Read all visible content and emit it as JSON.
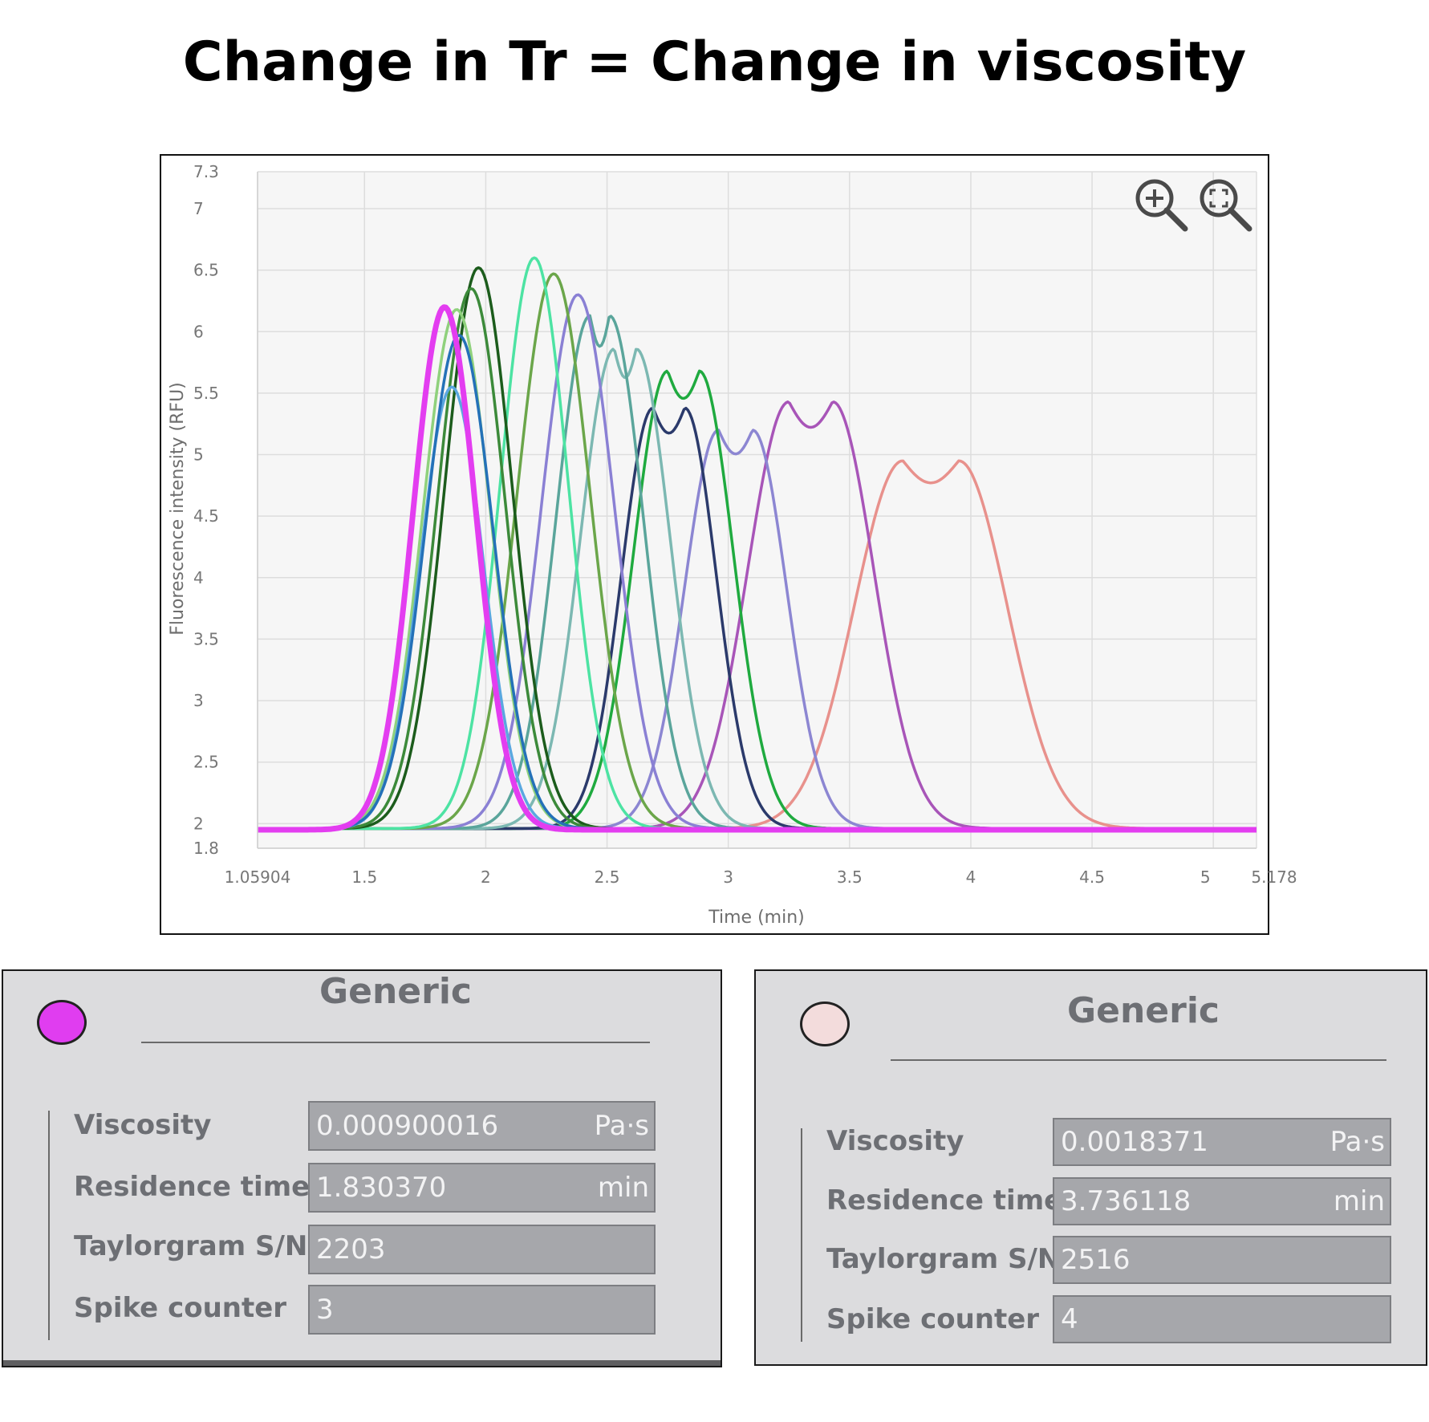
{
  "title": "Change in Tr = Change in viscosity",
  "chart_data": {
    "type": "line",
    "title": "",
    "xlabel": "Time (min)",
    "ylabel": "Fluorescence intensity (RFU)",
    "xlim": [
      1.05904,
      5.178
    ],
    "ylim": [
      1.8,
      7.3
    ],
    "x_ticks": [
      "1.05904",
      "1.5",
      "2",
      "2.5",
      "3",
      "3.5",
      "4",
      "4.5",
      "5",
      "5.178"
    ],
    "y_ticks": [
      "1.8",
      "2",
      "2.5",
      "3",
      "3.5",
      "4",
      "4.5",
      "5",
      "5.5",
      "6",
      "6.5",
      "7",
      "7.3"
    ],
    "grid": true,
    "legend": "none",
    "series": [
      {
        "color": "#e8918c",
        "baseline": 1.96,
        "peaks": [
          {
            "t": 3.72,
            "h": 4.95,
            "w": 0.2
          },
          {
            "t": 3.95,
            "h": 4.95,
            "w": 0.2
          }
        ]
      },
      {
        "color": "#a855b8",
        "baseline": 1.96,
        "peaks": [
          {
            "t": 3.25,
            "h": 5.43,
            "w": 0.17
          },
          {
            "t": 3.43,
            "h": 5.43,
            "w": 0.17
          }
        ]
      },
      {
        "color": "#8c86d2",
        "baseline": 1.96,
        "peaks": [
          {
            "t": 2.96,
            "h": 5.2,
            "w": 0.14
          },
          {
            "t": 3.1,
            "h": 5.2,
            "w": 0.14
          }
        ]
      },
      {
        "color": "#1faa3f",
        "baseline": 1.96,
        "peaks": [
          {
            "t": 2.75,
            "h": 5.68,
            "w": 0.14
          },
          {
            "t": 2.88,
            "h": 5.68,
            "w": 0.14
          }
        ]
      },
      {
        "color": "#2b3a6b",
        "baseline": 1.96,
        "peaks": [
          {
            "t": 2.69,
            "h": 5.38,
            "w": 0.13
          },
          {
            "t": 2.82,
            "h": 5.38,
            "w": 0.13
          }
        ]
      },
      {
        "color": "#7cb8b2",
        "baseline": 1.96,
        "peaks": [
          {
            "t": 2.53,
            "h": 5.86,
            "w": 0.14
          },
          {
            "t": 2.62,
            "h": 5.86,
            "w": 0.14
          }
        ]
      },
      {
        "color": "#5aa59b",
        "baseline": 1.96,
        "peaks": [
          {
            "t": 2.43,
            "h": 6.13,
            "w": 0.14
          },
          {
            "t": 2.51,
            "h": 6.13,
            "w": 0.14
          }
        ]
      },
      {
        "color": "#8a80d4",
        "baseline": 1.96,
        "peaks": [
          {
            "t": 2.38,
            "h": 6.3,
            "w": 0.15
          }
        ]
      },
      {
        "color": "#6ba64a",
        "baseline": 1.96,
        "peaks": [
          {
            "t": 2.28,
            "h": 6.47,
            "w": 0.15
          }
        ]
      },
      {
        "color": "#4de3a3",
        "baseline": 1.96,
        "peaks": [
          {
            "t": 2.2,
            "h": 6.6,
            "w": 0.14
          }
        ]
      },
      {
        "color": "#1c5c1c",
        "baseline": 1.96,
        "peaks": [
          {
            "t": 1.97,
            "h": 6.52,
            "w": 0.14
          }
        ]
      },
      {
        "color": "#3c8a3a",
        "baseline": 1.96,
        "peaks": [
          {
            "t": 1.94,
            "h": 6.35,
            "w": 0.14
          }
        ]
      },
      {
        "color": "#8fd17c",
        "baseline": 1.96,
        "peaks": [
          {
            "t": 1.88,
            "h": 6.18,
            "w": 0.14
          }
        ]
      },
      {
        "color": "#5aa7e0",
        "baseline": 1.96,
        "peaks": [
          {
            "t": 1.86,
            "h": 5.55,
            "w": 0.13
          }
        ]
      },
      {
        "color": "#2471b8",
        "baseline": 1.96,
        "peaks": [
          {
            "t": 1.89,
            "h": 5.97,
            "w": 0.14
          }
        ]
      },
      {
        "color": "#e33df0",
        "baseline": 1.95,
        "peaks": [
          {
            "t": 1.83,
            "h": 6.2,
            "w": 0.13
          }
        ],
        "thick": true
      }
    ]
  },
  "toolbar": {
    "zoom_in_icon": "zoom-in-icon",
    "zoom_reset_icon": "zoom-fit-icon"
  },
  "panels": [
    {
      "heading": "Generic",
      "dot_color": "#e03df0",
      "fields": [
        {
          "label": "Viscosity",
          "value": "0.000900016",
          "unit": "Pa·s"
        },
        {
          "label": "Residence time",
          "value": "1.830370",
          "unit": "min"
        },
        {
          "label": "Taylorgram S/N",
          "value": "2203",
          "unit": ""
        },
        {
          "label": "Spike counter",
          "value": "3",
          "unit": ""
        }
      ]
    },
    {
      "heading": "Generic",
      "dot_color": "#f3dcdc",
      "fields": [
        {
          "label": "Viscosity",
          "value": "0.0018371",
          "unit": "Pa·s"
        },
        {
          "label": "Residence time",
          "value": "3.736118",
          "unit": "min"
        },
        {
          "label": "Taylorgram S/N",
          "value": "2516",
          "unit": ""
        },
        {
          "label": "Spike counter",
          "value": "4",
          "unit": ""
        }
      ]
    }
  ]
}
